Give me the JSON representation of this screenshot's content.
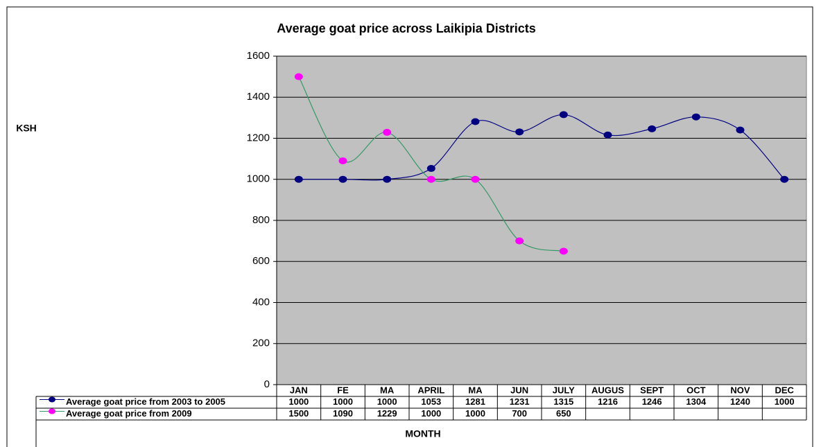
{
  "chart_data": {
    "type": "line",
    "title": "Average goat price across Laikipia Districts",
    "y_label": "KSH",
    "x_label": "MONTH",
    "categories": [
      "JAN",
      "FE",
      "MA",
      "APRIL",
      "MA",
      "JUN",
      "JULY",
      "AUGUS",
      "SEPT",
      "OCT",
      "NOV",
      "DEC"
    ],
    "series": [
      {
        "name": "Average goat price from 2003 to 2005",
        "color": "#000080",
        "marker_color": "#000080",
        "values": [
          1000,
          1000,
          1000,
          1053,
          1281,
          1231,
          1315,
          1216,
          1246,
          1304,
          1240,
          1000
        ]
      },
      {
        "name": "Average goat price from 2009",
        "color": "#339966",
        "marker_color": "#ff00ff",
        "values": [
          1500,
          1090,
          1229,
          1000,
          1000,
          700,
          650,
          null,
          null,
          null,
          null,
          null
        ]
      }
    ],
    "ylim": [
      0,
      1600
    ],
    "yticks": [
      0,
      200,
      400,
      600,
      800,
      1000,
      1200,
      1400,
      1600
    ],
    "grid": true,
    "plot_background": "#c0c0c0",
    "smooth": true
  }
}
